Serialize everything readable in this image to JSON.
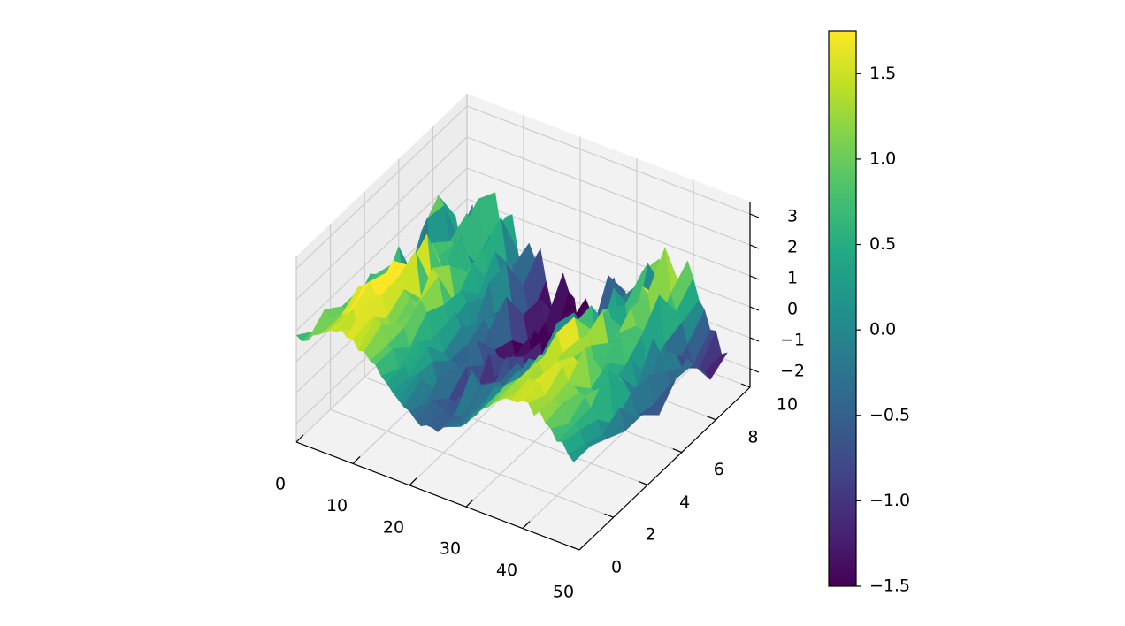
{
  "chart_data": {
    "type": "surface3d",
    "colormap": "viridis",
    "grid": true,
    "surface": {
      "x_range": [
        0,
        49
      ],
      "y_range": [
        0,
        9
      ],
      "x_steps": 50,
      "y_steps": 10,
      "description_of_shape": "sin(x/5)+cos(y/3)-like wave with random noise",
      "base_wave": {
        "x_period": 31.4,
        "amplitude_x": 1.0,
        "amplitude_y": 0.5
      },
      "noise_std": 0.6
    },
    "axes": {
      "x": {
        "ticks": [
          0,
          10,
          20,
          30,
          40,
          50
        ],
        "tick_labels": [
          "0",
          "10",
          "20",
          "30",
          "40",
          "50"
        ],
        "lim": [
          0,
          50
        ]
      },
      "y": {
        "ticks": [
          0,
          2,
          4,
          6,
          8,
          10
        ],
        "tick_labels": [
          "0",
          "2",
          "4",
          "6",
          "8",
          "10"
        ],
        "lim": [
          0,
          10
        ]
      },
      "z": {
        "ticks": [
          -2,
          -1,
          0,
          1,
          2,
          3
        ],
        "tick_labels": [
          "−2",
          "−1",
          "0",
          "1",
          "2",
          "3"
        ],
        "lim": [
          -2.6,
          3.4
        ]
      }
    },
    "colorbar": {
      "ticks": [
        -1.5,
        -1.0,
        -0.5,
        0.0,
        0.5,
        1.0,
        1.5
      ],
      "tick_labels": [
        "−1.5",
        "−1.0",
        "−0.5",
        "0.0",
        "0.5",
        "1.0",
        "1.5"
      ],
      "range": [
        -1.5,
        1.75
      ]
    },
    "title": "",
    "xlabel": "",
    "ylabel": "",
    "zlabel": ""
  }
}
